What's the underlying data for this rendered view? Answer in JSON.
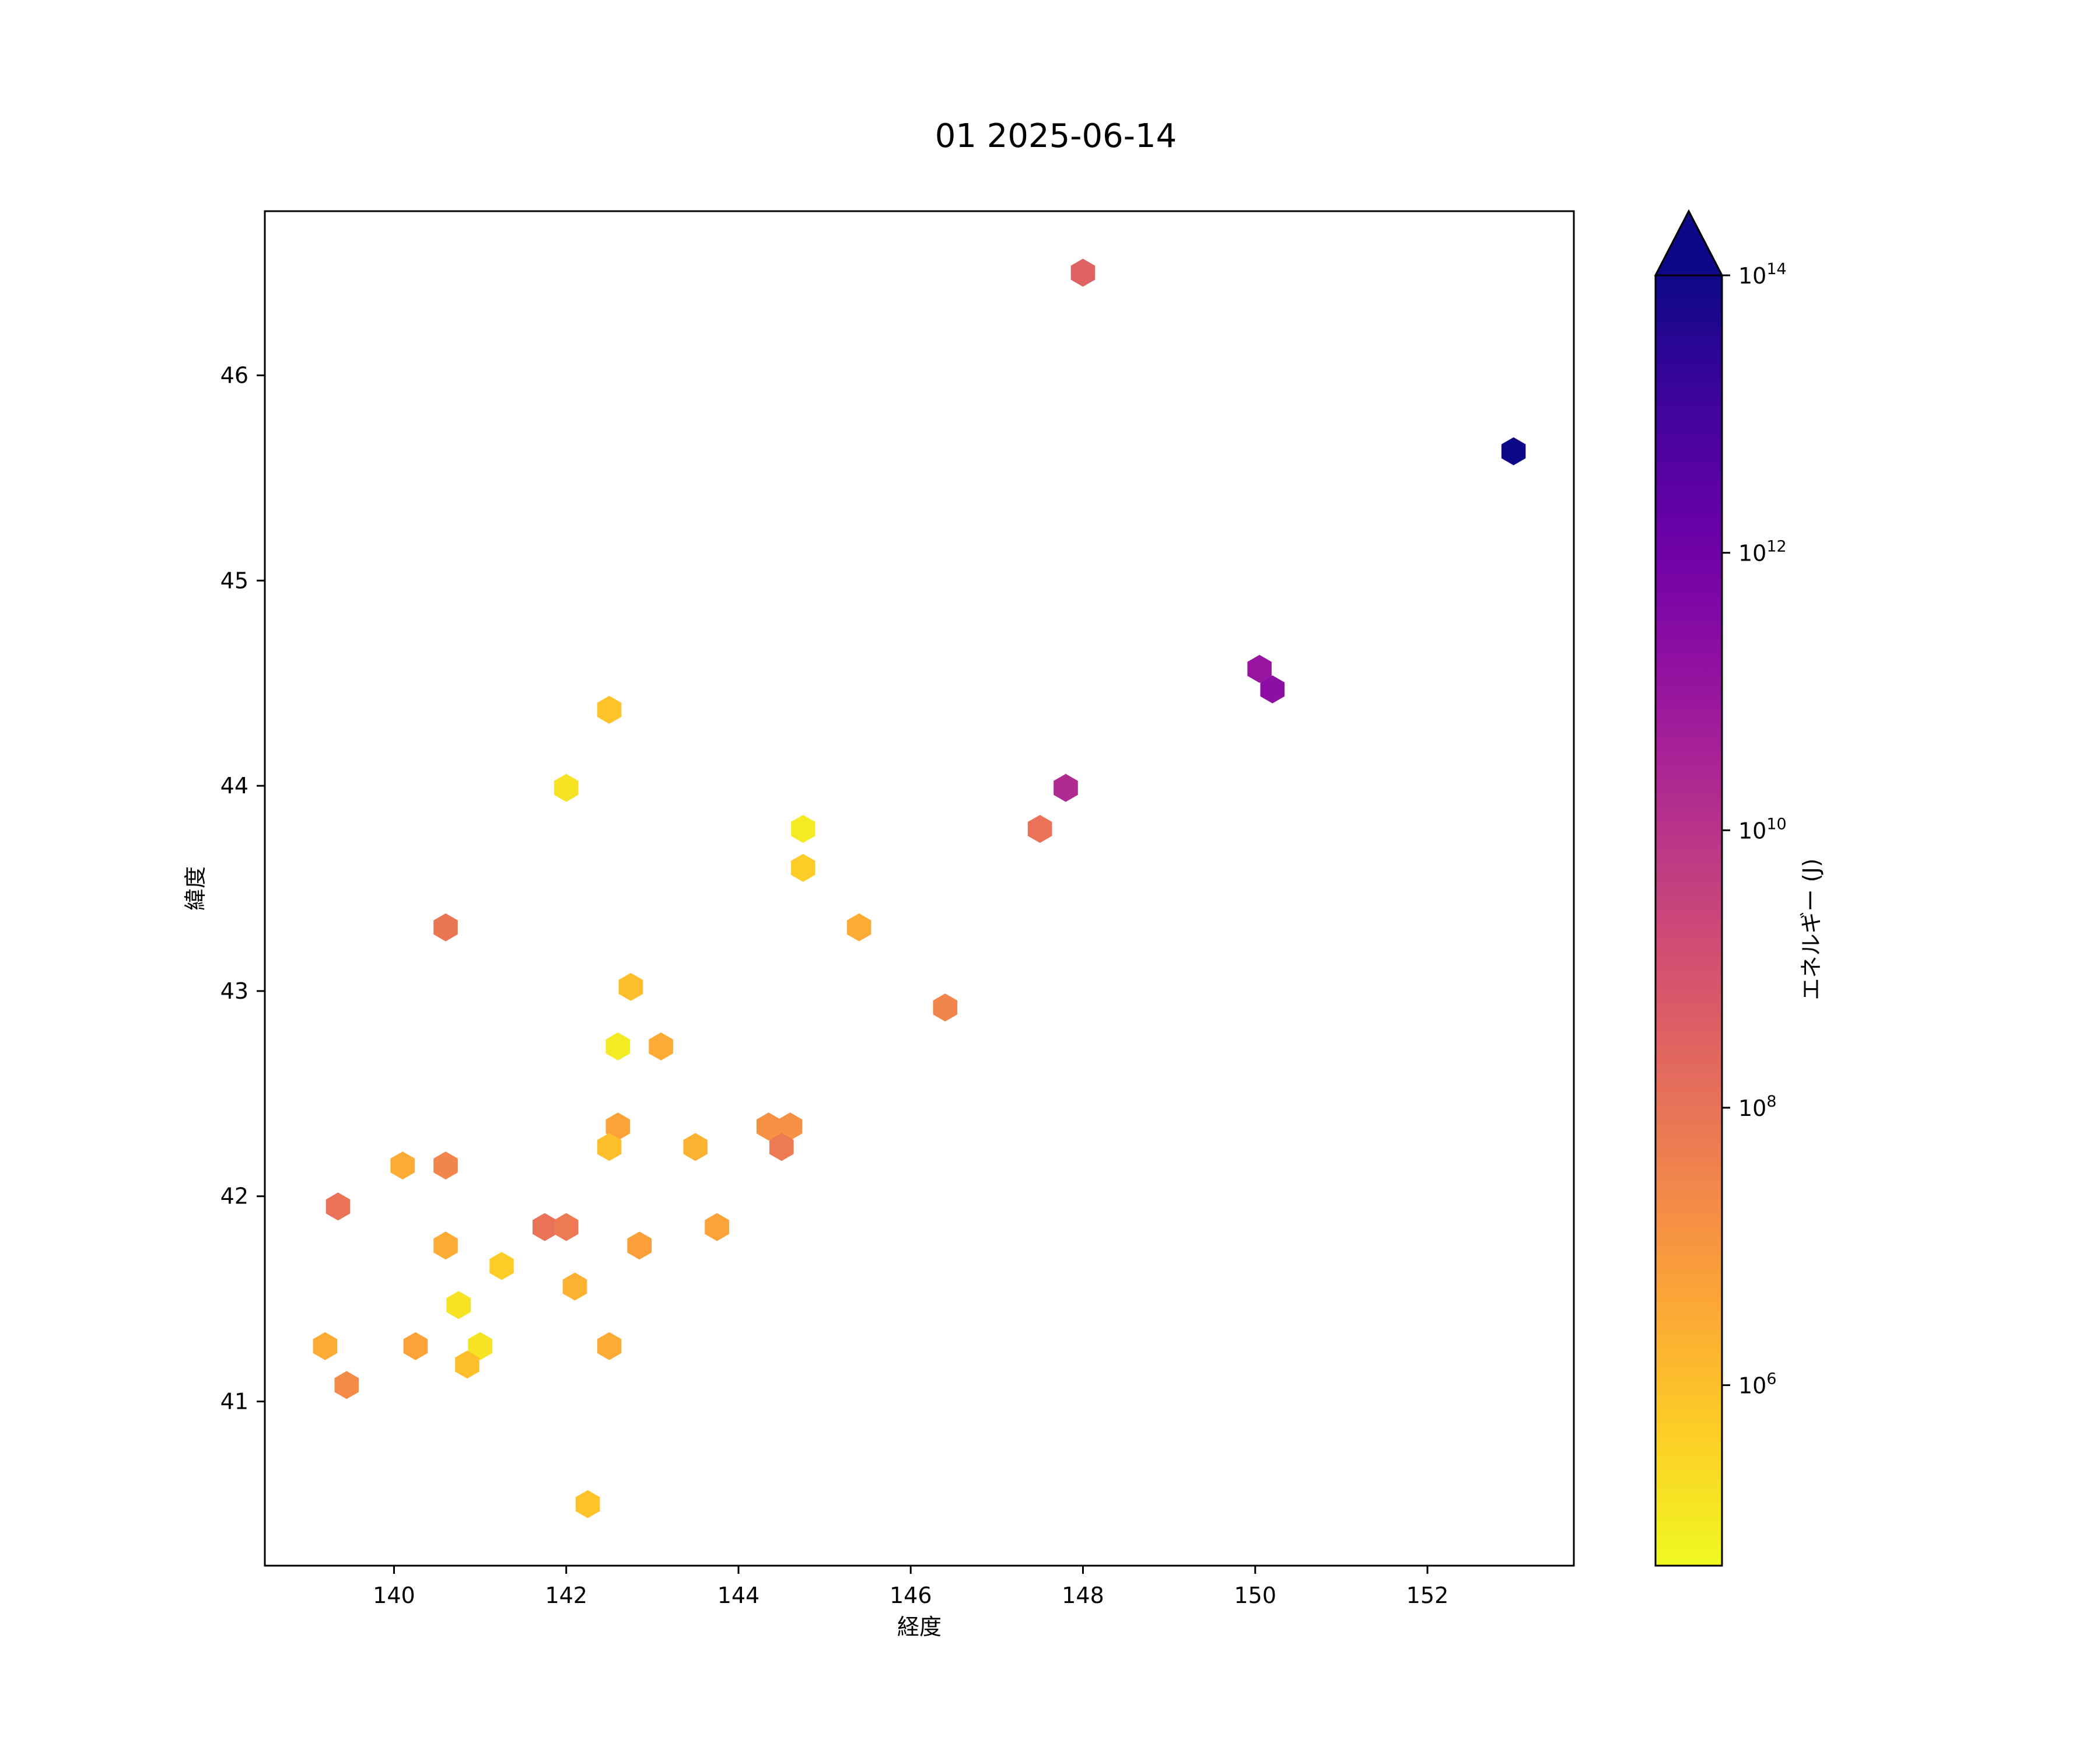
{
  "chart_data": {
    "type": "hexbin",
    "title": "01 2025-06-14",
    "xlabel": "経度",
    "ylabel": "緯度",
    "xlim": [
      138.5,
      153.7
    ],
    "ylim": [
      40.2,
      46.8
    ],
    "xticks": [
      140,
      142,
      144,
      146,
      148,
      150,
      152
    ],
    "yticks": [
      41,
      42,
      43,
      44,
      45,
      46
    ],
    "grid": false,
    "colorbar": {
      "label": "エネルギー (J)",
      "scale": "log",
      "colormap": "plasma_r",
      "extend": "max",
      "range": [
        50000.0,
        100000000000000.0
      ],
      "ticks": [
        {
          "base": "10",
          "exp": "6",
          "value": 1000000.0
        },
        {
          "base": "10",
          "exp": "8",
          "value": 100000000.0
        },
        {
          "base": "10",
          "exp": "10",
          "value": 10000000000.0
        },
        {
          "base": "10",
          "exp": "12",
          "value": 1000000000000.0
        },
        {
          "base": "10",
          "exp": "14",
          "value": 100000000000000.0
        }
      ]
    },
    "points": [
      {
        "x": 148.0,
        "y": 46.5,
        "energy": 300000000.0
      },
      {
        "x": 153.0,
        "y": 45.63,
        "energy": 100000000000000.0
      },
      {
        "x": 150.05,
        "y": 44.57,
        "energy": 100000000000.0
      },
      {
        "x": 150.2,
        "y": 44.47,
        "energy": 200000000000.0
      },
      {
        "x": 147.8,
        "y": 43.99,
        "energy": 20000000000.0
      },
      {
        "x": 147.5,
        "y": 43.79,
        "energy": 100000000.0
      },
      {
        "x": 146.4,
        "y": 42.92,
        "energy": 30000000.0
      },
      {
        "x": 145.4,
        "y": 43.31,
        "energy": 3000000.0
      },
      {
        "x": 144.75,
        "y": 43.79,
        "energy": 100000.0
      },
      {
        "x": 144.75,
        "y": 43.6,
        "energy": 500000.0
      },
      {
        "x": 142.5,
        "y": 44.37,
        "energy": 800000.0
      },
      {
        "x": 142.0,
        "y": 43.99,
        "energy": 150000.0
      },
      {
        "x": 140.6,
        "y": 43.31,
        "energy": 80000000.0
      },
      {
        "x": 142.75,
        "y": 43.02,
        "energy": 1000000.0
      },
      {
        "x": 142.6,
        "y": 42.73,
        "energy": 100000.0
      },
      {
        "x": 143.1,
        "y": 42.73,
        "energy": 3000000.0
      },
      {
        "x": 142.6,
        "y": 42.34,
        "energy": 5000000.0
      },
      {
        "x": 142.5,
        "y": 42.24,
        "energy": 1000000.0
      },
      {
        "x": 143.5,
        "y": 42.24,
        "energy": 2000000.0
      },
      {
        "x": 144.35,
        "y": 42.34,
        "energy": 15000000.0
      },
      {
        "x": 144.6,
        "y": 42.34,
        "energy": 15000000.0
      },
      {
        "x": 144.5,
        "y": 42.24,
        "energy": 60000000.0
      },
      {
        "x": 140.1,
        "y": 42.15,
        "energy": 3000000.0
      },
      {
        "x": 140.6,
        "y": 42.15,
        "energy": 30000000.0
      },
      {
        "x": 139.35,
        "y": 41.95,
        "energy": 100000000.0
      },
      {
        "x": 141.75,
        "y": 41.85,
        "energy": 100000000.0
      },
      {
        "x": 142.0,
        "y": 41.85,
        "energy": 60000000.0
      },
      {
        "x": 143.75,
        "y": 41.85,
        "energy": 5000000.0
      },
      {
        "x": 140.6,
        "y": 41.76,
        "energy": 3000000.0
      },
      {
        "x": 142.85,
        "y": 41.76,
        "energy": 6000000.0
      },
      {
        "x": 141.25,
        "y": 41.66,
        "energy": 500000.0
      },
      {
        "x": 142.1,
        "y": 41.56,
        "energy": 2000000.0
      },
      {
        "x": 140.75,
        "y": 41.47,
        "energy": 150000.0
      },
      {
        "x": 139.2,
        "y": 41.27,
        "energy": 3000000.0
      },
      {
        "x": 140.25,
        "y": 41.27,
        "energy": 5000000.0
      },
      {
        "x": 141.0,
        "y": 41.27,
        "energy": 150000.0
      },
      {
        "x": 142.5,
        "y": 41.27,
        "energy": 3000000.0
      },
      {
        "x": 140.85,
        "y": 41.18,
        "energy": 1000000.0
      },
      {
        "x": 139.45,
        "y": 41.08,
        "energy": 20000000.0
      },
      {
        "x": 142.25,
        "y": 40.5,
        "energy": 800000.0
      }
    ]
  }
}
